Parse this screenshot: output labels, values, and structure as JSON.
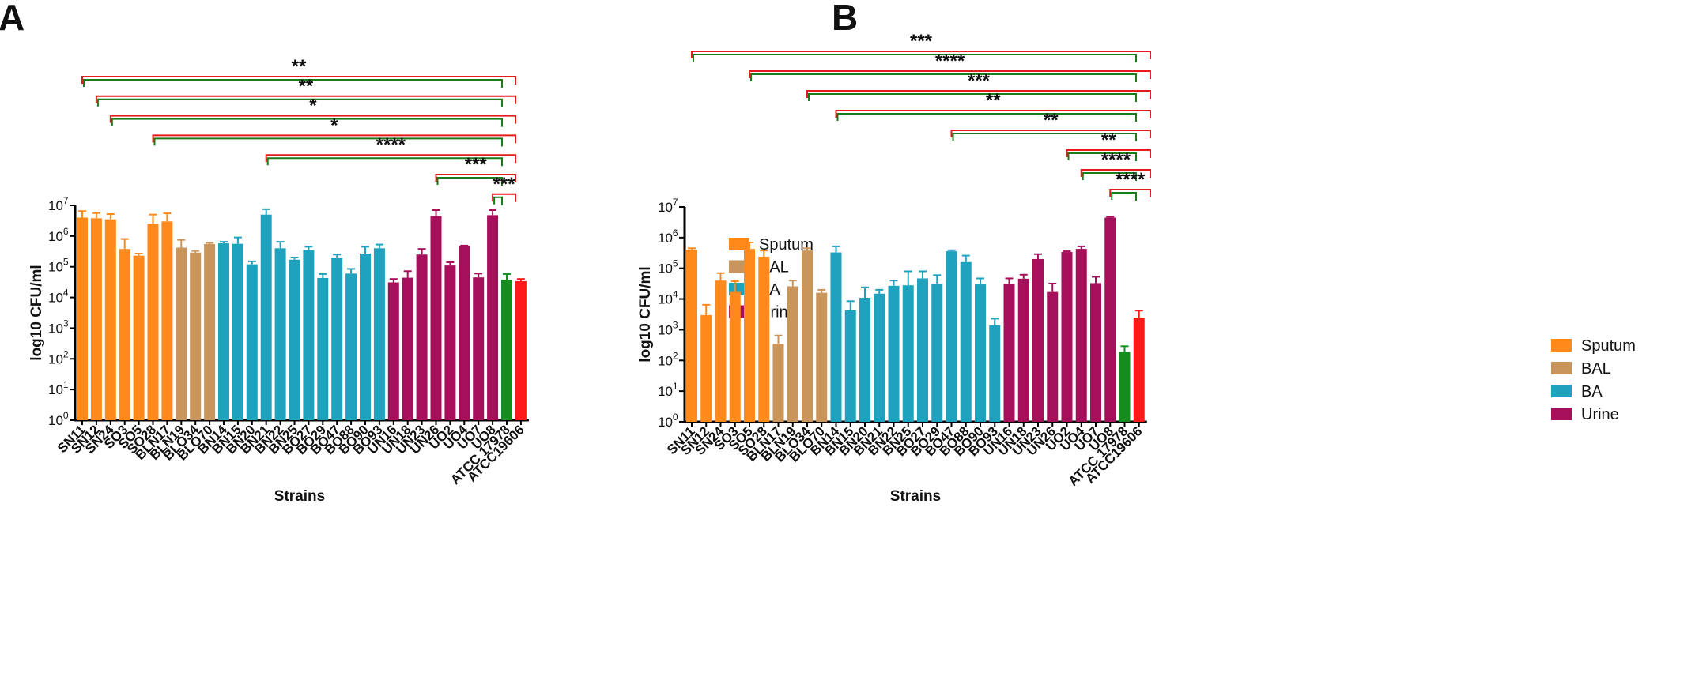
{
  "palette": {
    "Sputum": "#FF8A1B",
    "BAL": "#C9955A",
    "BA": "#1FA2BE",
    "Urine": "#A6105A",
    "ATCC 17978": "#148C1E",
    "ATCC19606": "#FF1A1A",
    "bracket_17978": "#1A7D1A",
    "bracket_19606": "#E51C1C"
  },
  "legend": {
    "items": [
      {
        "label": "Sputum",
        "color": "#FF8A1B"
      },
      {
        "label": "BAL",
        "color": "#C9955A"
      },
      {
        "label": "BA",
        "color": "#1FA2BE"
      },
      {
        "label": "Urine",
        "color": "#A6105A"
      }
    ]
  },
  "chart_data": [
    {
      "panel": "A",
      "type": "bar",
      "xlabel": "Strains",
      "ylabel": "log10 CFU/ml",
      "yscale": "log",
      "ylim": [
        1,
        10000000
      ],
      "yticks": [
        "10",
        "10",
        "10",
        "10",
        "10",
        "10",
        "10",
        "10"
      ],
      "ytick_exponents": [
        "0",
        "1",
        "2",
        "3",
        "4",
        "5",
        "6",
        "7"
      ],
      "categories": [
        "SN11",
        "SN12",
        "SN24",
        "SO3",
        "SO5",
        "SO28",
        "BLN17",
        "BLN19",
        "BLO34",
        "BLO70",
        "BN14",
        "BN15",
        "BN20",
        "BN21",
        "BN22",
        "BN25",
        "BO27",
        "BO29",
        "BO47",
        "BO88",
        "BO90",
        "BO93",
        "UN16",
        "UN18",
        "UN23",
        "UN26",
        "UO2",
        "UO4",
        "UO7",
        "UO8",
        "ATCC 17978",
        "ATCC19606"
      ],
      "groups": [
        "Sputum",
        "Sputum",
        "Sputum",
        "Sputum",
        "Sputum",
        "Sputum",
        "Sputum",
        "BAL",
        "BAL",
        "BAL",
        "BA",
        "BA",
        "BA",
        "BA",
        "BA",
        "BA",
        "BA",
        "BA",
        "BA",
        "BA",
        "BA",
        "BA",
        "Urine",
        "Urine",
        "Urine",
        "Urine",
        "Urine",
        "Urine",
        "Urine",
        "Urine",
        "ATCC 17978",
        "ATCC19606"
      ],
      "values": [
        4000000,
        3800000,
        3500000,
        380000,
        230000,
        2500000,
        3000000,
        420000,
        290000,
        550000,
        580000,
        560000,
        120000,
        5000000,
        400000,
        170000,
        350000,
        43000,
        200000,
        60000,
        270000,
        400000,
        31000,
        44000,
        250000,
        4500000,
        110000,
        470000,
        45000,
        4800000,
        38000,
        34000
      ],
      "errors": [
        6500000,
        5600000,
        5200000,
        800000,
        270000,
        5000000,
        5500000,
        750000,
        330000,
        600000,
        650000,
        900000,
        150000,
        7500000,
        650000,
        200000,
        450000,
        58000,
        250000,
        85000,
        450000,
        530000,
        40000,
        72000,
        380000,
        7000000,
        140000,
        490000,
        60000,
        7000000,
        58000,
        40000
      ],
      "comparisons": [
        {
          "from": "SN11",
          "label": "**"
        },
        {
          "from": "SN12",
          "label": "**"
        },
        {
          "from": "SN24",
          "label": "*"
        },
        {
          "from": "SO28",
          "label": "*"
        },
        {
          "from": "BN21",
          "label": "****"
        },
        {
          "from": "UN26",
          "label": "***"
        },
        {
          "from": "UO8",
          "label": "***"
        }
      ]
    },
    {
      "panel": "B",
      "type": "bar",
      "xlabel": "Strains",
      "ylabel": "log10 CFU/ml",
      "yscale": "log",
      "ylim": [
        1,
        10000000
      ],
      "yticks": [
        "10",
        "10",
        "10",
        "10",
        "10",
        "10",
        "10",
        "10"
      ],
      "ytick_exponents": [
        "0",
        "1",
        "2",
        "3",
        "4",
        "5",
        "6",
        "7"
      ],
      "categories": [
        "SN11",
        "SN12",
        "SN24",
        "SO3",
        "SO5",
        "SO28",
        "BLN17",
        "BLN19",
        "BLO34",
        "BLO70",
        "BN14",
        "BN15",
        "BN20",
        "BN21",
        "BN22",
        "BN25",
        "BO27",
        "BO29",
        "BO47",
        "BO88",
        "BO90",
        "BO93",
        "UN16",
        "UN18",
        "UN23",
        "UN26",
        "UO2",
        "UO4",
        "UO7",
        "UO8",
        "ATCC 17978",
        "ATCC19606"
      ],
      "groups": [
        "Sputum",
        "Sputum",
        "Sputum",
        "Sputum",
        "Sputum",
        "Sputum",
        "BAL",
        "BAL",
        "BAL",
        "BAL",
        "BA",
        "BA",
        "BA",
        "BA",
        "BA",
        "BA",
        "BA",
        "BA",
        "BA",
        "BA",
        "BA",
        "BA",
        "Urine",
        "Urine",
        "Urine",
        "Urine",
        "Urine",
        "Urine",
        "Urine",
        "Urine",
        "ATCC 17978",
        "ATCC19606"
      ],
      "values": [
        400000,
        3000,
        40000,
        17000,
        430000,
        240000,
        350,
        26000,
        380000,
        16000,
        330000,
        4300,
        11000,
        15000,
        27000,
        28000,
        47000,
        32000,
        360000,
        160000,
        30000,
        1400,
        31000,
        46000,
        200000,
        17000,
        340000,
        430000,
        33000,
        4500000,
        190,
        2500
      ],
      "errors": [
        450000,
        6500,
        70000,
        38000,
        700000,
        380000,
        650,
        40000,
        450000,
        20000,
        520000,
        8500,
        24000,
        20000,
        40000,
        80000,
        80000,
        60000,
        390000,
        260000,
        47000,
        2300,
        47000,
        62000,
        290000,
        32000,
        360000,
        520000,
        53000,
        4800000,
        290,
        4200
      ],
      "comparisons": [
        {
          "from": "SN11",
          "label": "***"
        },
        {
          "from": "SO5",
          "label": "****"
        },
        {
          "from": "BLO34",
          "label": "***"
        },
        {
          "from": "BN14",
          "label": "**"
        },
        {
          "from": "BO47",
          "label": "**"
        },
        {
          "from": "UO2",
          "label": "**"
        },
        {
          "from": "UO4",
          "label": "****"
        },
        {
          "from": "UO8",
          "label": "****"
        }
      ]
    }
  ]
}
